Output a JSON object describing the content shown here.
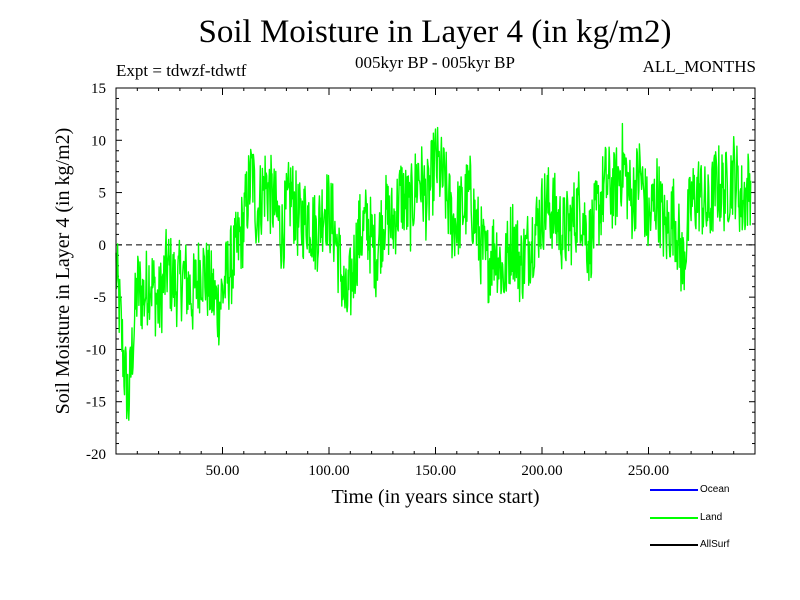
{
  "header": {
    "title": "Soil Moisture in Layer 4 (in kg/m2)",
    "experiment": "Expt = tdwzf-tdwtf",
    "period": "005kyr BP - 005kyr BP",
    "months": "ALL_MONTHS"
  },
  "legend": [
    {
      "name": "Ocean",
      "color": "#0000ff"
    },
    {
      "name": "Land",
      "color": "#00ff00"
    },
    {
      "name": "AllSurf",
      "color": "#000000"
    }
  ],
  "chart_data": {
    "type": "line",
    "title": "Soil Moisture in Layer 4 (in kg/m2)",
    "xlabel": "Time (in years since start)",
    "ylabel": "Soil Moisture in Layer 4 (in kg/m2)",
    "xlim": [
      0,
      300
    ],
    "ylim": [
      -20,
      15
    ],
    "x_ticks": [
      50,
      100,
      150,
      200,
      250
    ],
    "x_tick_labels": [
      "50.00",
      "100.00",
      "150.00",
      "200.00",
      "250.00"
    ],
    "y_ticks": [
      -20,
      -15,
      -10,
      -5,
      0,
      5,
      10,
      15
    ],
    "y_tick_labels": [
      "-20",
      "-15",
      "-10",
      "-5",
      "0",
      "5",
      "10",
      "15"
    ],
    "reference_line": {
      "y": 0,
      "style": "dashed"
    },
    "grid": false,
    "legend_position": "bottom-right",
    "series": [
      {
        "name": "Land",
        "color": "#00ff00",
        "x": [
          0,
          2,
          4,
          6,
          8,
          10,
          13,
          16,
          20,
          24,
          28,
          32,
          36,
          40,
          44,
          48,
          52,
          56,
          60,
          62,
          64,
          66,
          70,
          74,
          78,
          82,
          86,
          90,
          94,
          98,
          102,
          106,
          108,
          110,
          114,
          118,
          122,
          126,
          130,
          134,
          138,
          142,
          146,
          150,
          154,
          158,
          162,
          166,
          170,
          174,
          178,
          182,
          186,
          190,
          194,
          198,
          202,
          206,
          210,
          214,
          218,
          222,
          226,
          230,
          234,
          238,
          242,
          246,
          250,
          254,
          258,
          262,
          266,
          270,
          274,
          278,
          282,
          286,
          290,
          294,
          298
        ],
        "values": [
          -2,
          -7,
          -12,
          -15,
          -9,
          -4,
          -5,
          -3,
          -6,
          -2,
          -4,
          -3,
          -5,
          -2,
          -4,
          -6,
          -3,
          -1,
          2,
          5,
          7,
          3,
          6,
          4,
          1,
          5,
          2,
          3,
          1,
          4,
          2,
          -3,
          -6,
          -4,
          1,
          2,
          -1,
          3,
          2,
          5,
          3,
          7,
          4,
          8,
          6,
          2,
          3,
          5,
          1,
          -2,
          0,
          -3,
          1,
          -2,
          0,
          2,
          4,
          3,
          1,
          2,
          4,
          0,
          3,
          6,
          5,
          8,
          4,
          7,
          2,
          5,
          1,
          3,
          -2,
          4,
          5,
          3,
          6,
          5,
          7,
          4,
          6
        ]
      }
    ]
  }
}
